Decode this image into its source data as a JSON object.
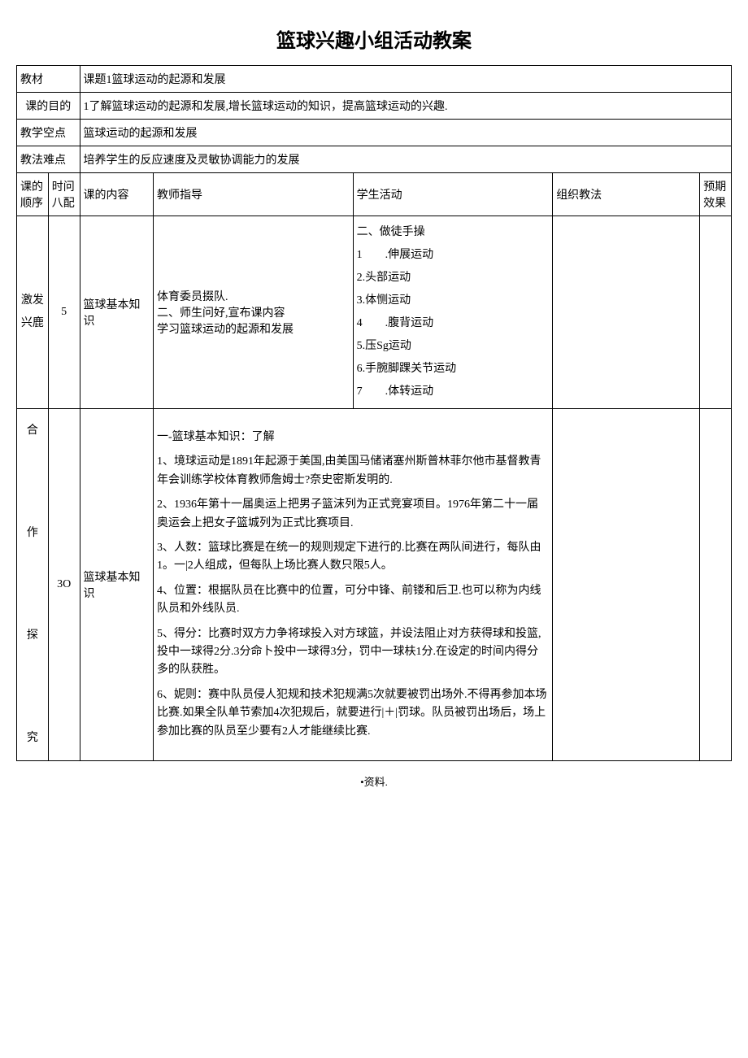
{
  "title": "篮球兴趣小组活动教案",
  "header_rows": {
    "row1": {
      "label": "教材",
      "value": "课题1篮球运动的起源和发展"
    },
    "row2": {
      "label": "课的目的",
      "value": "1了解篮球运动的起源和发展,增长篮球运动的知识，提高篮球运动的兴趣."
    },
    "row3": {
      "label": "教学空点",
      "value": "篮球运动的起源和发展"
    },
    "row4": {
      "label": "教法难点",
      "value": "培养学生的反应速度及灵敏协调能力的发展"
    }
  },
  "column_headers": {
    "c1": "课的顺序",
    "c2": "时问八配",
    "c3": "课的内容",
    "c4": "教师指导",
    "c5": "学生活动",
    "c6": "组织教法",
    "c7": "预期效果"
  },
  "row_a": {
    "order": "激发兴鹿",
    "time": "5",
    "content": "篮球基本知识",
    "teacher": "体育委员掇队.\n二、师生问好,宣布课内容\n学习篮球运动的起源和发展",
    "student_title": "二、做徒手操",
    "student_items": [
      "1　　.伸展运动",
      "2.头部运动",
      "3.体恻运动",
      "4　　.腹背运动",
      "5.压Sg运动",
      "6.手腕脚踝关节运动",
      "7　　.体转运动"
    ]
  },
  "row_b": {
    "order": "合　　作　　探　　究",
    "time": "3O",
    "content": "篮球基本知识",
    "teacher_title": "一-篮球基本知识：了解",
    "teacher_items": [
      "1、境球运动是1891年起源于美国,由美国马储诸塞州斯普林菲尔他市基督教青年会训练学校体育教师詹姆士?奈史密斯发明的.",
      "2、1936年第十一届奥运上把男子篮沫列为正式竞宴项目。1976年第二十一届奥运会上把女子篮城列为正式比赛项目.",
      "3、人数：篮球比赛是在统一的规则规定下进行的.比赛在两队间进行，每队由1。一|2人组成，但每队上场比赛人数只限5人。",
      "4、位置：根据队员在比赛中的位置，可分中锋、前镂和后卫.也可以称为内线队员和外线队员.",
      "5、得分：比赛时双方力争将球投入对方球篮，并设法阻止对方获得球和投篮,投中一球得2分.3分命卜投中一球得3分，罚中一球枎1分.在设定的时间内得分多的队获胜。",
      "6、妮则：赛中队员侵人犯规和技术犯规满5次就要被罚出场外.不得再参加本场比赛.如果全队单节索加4次犯规后，就要进行|＋|罚球。队员被罚出场后，场上参加比赛的队员至少要有2人才能继续比赛."
    ]
  },
  "footer": "•资料."
}
